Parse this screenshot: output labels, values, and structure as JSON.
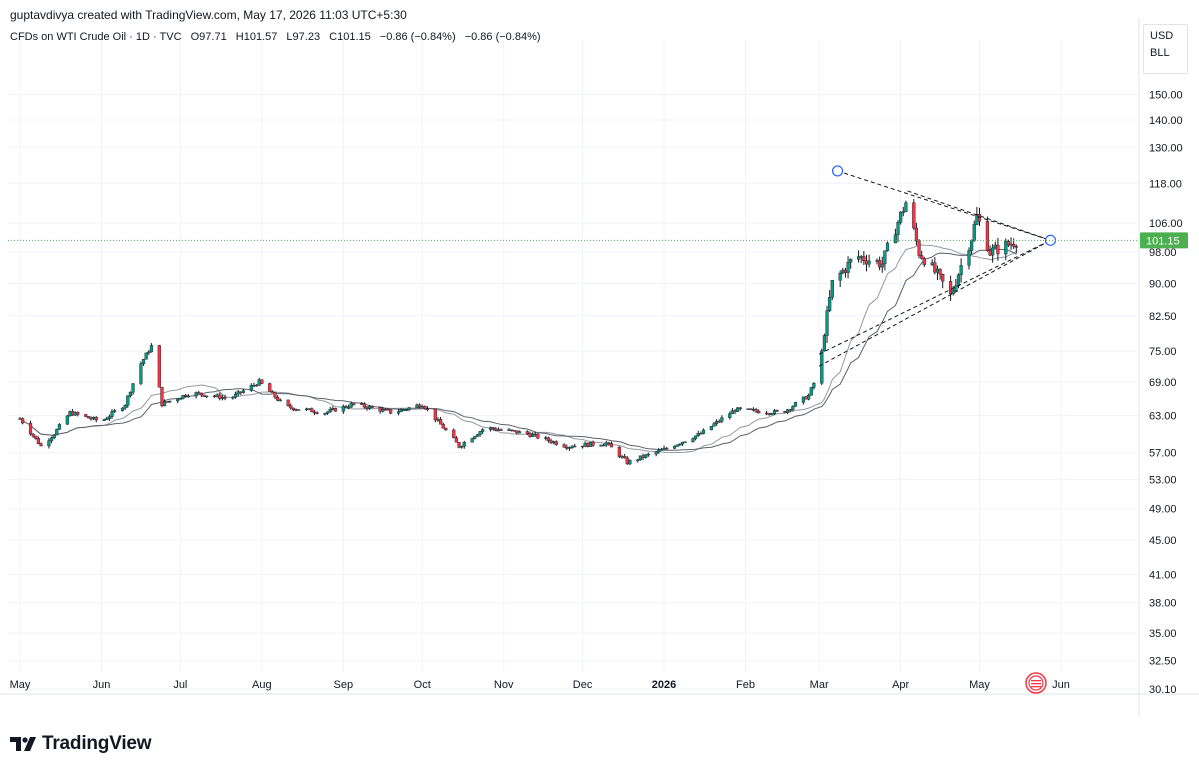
{
  "header": {
    "created_by": "guptavdivya created with TradingView.com, May 17, 2026 11:03 UTC+5:30"
  },
  "symbol": {
    "name": "CFDs on WTI Crude Oil · 1D · TVC",
    "open": "O97.71",
    "high": "H101.57",
    "low": "L97.23",
    "close": "C101.15",
    "change": "−0.86 (−0.84%)",
    "change2": "−0.86 (−0.84%)"
  },
  "units": {
    "currency": "USD",
    "unit": "BLL"
  },
  "brand": {
    "logo_text": "TradingView"
  },
  "colors": {
    "up": "#089981",
    "down": "#f23645",
    "last_price": "#4caf50",
    "ma": "#787b86"
  },
  "chart_data": {
    "type": "candlestick",
    "scale": "log",
    "price_ticks": [
      30.1,
      32.5,
      35.0,
      38.0,
      41.0,
      45.0,
      49.0,
      53.0,
      57.0,
      63.0,
      69.0,
      75.0,
      82.5,
      90.0,
      98.0,
      106.0,
      118.0,
      130.0,
      140.0,
      150.0
    ],
    "time_ticks": [
      "May",
      "Jun",
      "Jul",
      "Aug",
      "Sep",
      "Oct",
      "Nov",
      "Dec",
      "2026",
      "Feb",
      "Mar",
      "Apr",
      "May",
      "Jun"
    ],
    "last_price": "101.15",
    "ohlc": {
      "open": 97.71,
      "high": 101.57,
      "low": 97.23,
      "close": 101.15
    },
    "close_series": [
      {
        "t": "2025-05-01",
        "v": 62.5
      },
      {
        "t": "2025-05-09",
        "v": 58.0
      },
      {
        "t": "2025-05-14",
        "v": 60.0
      },
      {
        "t": "2025-05-20",
        "v": 63.5
      },
      {
        "t": "2025-06-01",
        "v": 62.0
      },
      {
        "t": "2025-06-10",
        "v": 65.0
      },
      {
        "t": "2025-06-16",
        "v": 72.5
      },
      {
        "t": "2025-06-20",
        "v": 76.0
      },
      {
        "t": "2025-06-24",
        "v": 65.0
      },
      {
        "t": "2025-07-05",
        "v": 67.0
      },
      {
        "t": "2025-07-20",
        "v": 66.0
      },
      {
        "t": "2025-07-31",
        "v": 69.0
      },
      {
        "t": "2025-08-10",
        "v": 64.5
      },
      {
        "t": "2025-08-25",
        "v": 63.5
      },
      {
        "t": "2025-09-05",
        "v": 65.0
      },
      {
        "t": "2025-09-20",
        "v": 63.5
      },
      {
        "t": "2025-10-01",
        "v": 65.0
      },
      {
        "t": "2025-10-15",
        "v": 58.0
      },
      {
        "t": "2025-10-25",
        "v": 61.0
      },
      {
        "t": "2025-11-10",
        "v": 60.0
      },
      {
        "t": "2025-11-25",
        "v": 58.0
      },
      {
        "t": "2025-12-10",
        "v": 58.5
      },
      {
        "t": "2025-12-18",
        "v": 55.5
      },
      {
        "t": "2026-01-01",
        "v": 57.5
      },
      {
        "t": "2026-01-15",
        "v": 60.0
      },
      {
        "t": "2026-01-28",
        "v": 64.0
      },
      {
        "t": "2026-02-15",
        "v": 63.5
      },
      {
        "t": "2026-02-25",
        "v": 66.5
      },
      {
        "t": "2026-03-01",
        "v": 71.0
      },
      {
        "t": "2026-03-06",
        "v": 90.0
      },
      {
        "t": "2026-03-15",
        "v": 97.0
      },
      {
        "t": "2026-03-25",
        "v": 95.0
      },
      {
        "t": "2026-04-03",
        "v": 112.0
      },
      {
        "t": "2026-04-08",
        "v": 98.0
      },
      {
        "t": "2026-04-15",
        "v": 92.0
      },
      {
        "t": "2026-04-20",
        "v": 87.0
      },
      {
        "t": "2026-04-28",
        "v": 102.0
      },
      {
        "t": "2026-04-30",
        "v": 108.0
      },
      {
        "t": "2026-05-05",
        "v": 98.0
      },
      {
        "t": "2026-05-12",
        "v": 100.0
      },
      {
        "t": "2026-05-15",
        "v": 101.15
      }
    ],
    "triangle": {
      "start_upper": {
        "t": "2026-03-08",
        "v": 122.0
      },
      "start_lower": {
        "t": "2026-03-01",
        "v": 72.0
      },
      "apex": {
        "t": "2026-05-28",
        "v": 101.15
      }
    }
  }
}
